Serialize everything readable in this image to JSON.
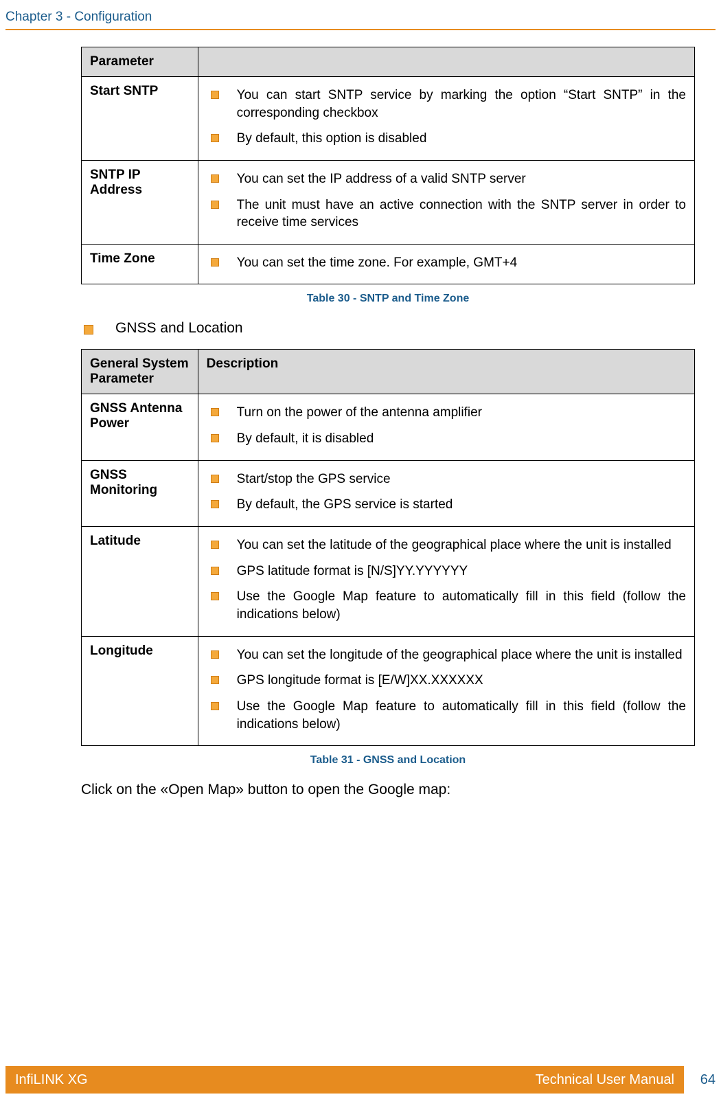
{
  "header": {
    "chapter_title": "Chapter 3 - Configuration"
  },
  "table1": {
    "col_header_left": "Parameter",
    "col_header_right": "",
    "rows": [
      {
        "param": "Start SNTP",
        "items": [
          "You can start SNTP service by marking the option “Start SNTP” in the corresponding checkbox",
          "By default, this option is disabled"
        ]
      },
      {
        "param": "SNTP IP Address",
        "items": [
          "You can set the IP address of a valid SNTP server",
          "The unit must have an active connection with the SNTP server in order to receive time services"
        ]
      },
      {
        "param": "Time Zone",
        "items": [
          "You can set the time zone. For example, GMT+4"
        ]
      }
    ],
    "caption": "Table 30 - SNTP and Time Zone"
  },
  "section1": {
    "title": "GNSS and Location"
  },
  "table2": {
    "col_header_left": "General System Parameter",
    "col_header_right": "Description",
    "rows": [
      {
        "param": "GNSS Antenna Power",
        "items": [
          "Turn on the power of the antenna amplifier",
          "By default, it is disabled"
        ]
      },
      {
        "param": "GNSS Monitoring",
        "items": [
          "Start/stop the GPS service",
          "By default, the GPS service is started"
        ]
      },
      {
        "param": "Latitude",
        "items": [
          "You can set the latitude of the geographical place where the unit is installed",
          "GPS latitude format is [N/S]YY.YYYYYY",
          "Use the Google Map  feature to automatically fill in this field (follow the indications below)"
        ]
      },
      {
        "param": "Longitude",
        "items": [
          "You can set the longitude of the geographical place where the unit is installed",
          "GPS longitude format is [E/W]XX.XXXXXX",
          "Use the Google Map  feature to automatically fill in this field (follow the indications below)"
        ]
      }
    ],
    "caption": "Table 31 - GNSS and Location"
  },
  "body_text": "Click on the «Open Map» button to open the Google map:",
  "footer": {
    "product": "InfiLINK XG",
    "doc_title": "Technical User Manual",
    "page_number": "64"
  }
}
